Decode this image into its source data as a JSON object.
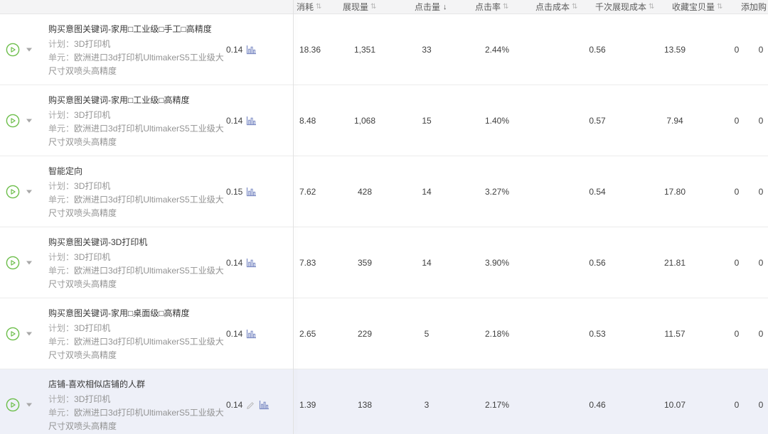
{
  "header": {
    "columns": [
      {
        "label": "消耗",
        "sort": "inactive"
      },
      {
        "label": "展现量",
        "sort": "inactive"
      },
      {
        "label": "点击量",
        "sort": "desc"
      },
      {
        "label": "点击率",
        "sort": "inactive"
      },
      {
        "label": "点击成本",
        "sort": "inactive"
      },
      {
        "label": "千次展现成本",
        "sort": "inactive"
      },
      {
        "label": "收藏宝贝量",
        "sort": "inactive"
      },
      {
        "label": "添加购",
        "sort": "none"
      }
    ],
    "sort_icon_inactive": "⇅",
    "sort_icon_desc": "↓"
  },
  "labels": {
    "plan": "计划：",
    "unit": "单元："
  },
  "rows": [
    {
      "name": "购买意图关键词-家用□工业级□手工□高精度",
      "plan": "3D打印机",
      "unit": "欧洲进口3d打印机UltimakerS5工业级大尺寸双喷头高精度",
      "bid": "0.14",
      "metrics": [
        "18.36",
        "1,351",
        "33",
        "2.44%",
        "0.56",
        "13.59",
        "0",
        "0"
      ],
      "highlighted": false,
      "editable": false
    },
    {
      "name": "购买意图关键词-家用□工业级□高精度",
      "plan": "3D打印机",
      "unit": "欧洲进口3d打印机UltimakerS5工业级大尺寸双喷头高精度",
      "bid": "0.14",
      "metrics": [
        "8.48",
        "1,068",
        "15",
        "1.40%",
        "0.57",
        "7.94",
        "0",
        "0"
      ],
      "highlighted": false,
      "editable": false
    },
    {
      "name": "智能定向",
      "plan": "3D打印机",
      "unit": "欧洲进口3d打印机UltimakerS5工业级大尺寸双喷头高精度",
      "bid": "0.15",
      "metrics": [
        "7.62",
        "428",
        "14",
        "3.27%",
        "0.54",
        "17.80",
        "0",
        "0"
      ],
      "highlighted": false,
      "editable": false
    },
    {
      "name": "购买意图关键词-3D打印机",
      "plan": "3D打印机",
      "unit": "欧洲进口3d打印机UltimakerS5工业级大尺寸双喷头高精度",
      "bid": "0.14",
      "metrics": [
        "7.83",
        "359",
        "14",
        "3.90%",
        "0.56",
        "21.81",
        "0",
        "0"
      ],
      "highlighted": false,
      "editable": false
    },
    {
      "name": "购买意图关键词-家用□桌面级□高精度",
      "plan": "3D打印机",
      "unit": "欧洲进口3d打印机UltimakerS5工业级大尺寸双喷头高精度",
      "bid": "0.14",
      "metrics": [
        "2.65",
        "229",
        "5",
        "2.18%",
        "0.53",
        "11.57",
        "0",
        "0"
      ],
      "highlighted": false,
      "editable": false
    },
    {
      "name": "店铺-喜欢相似店铺的人群",
      "plan": "3D打印机",
      "unit": "欧洲进口3d打印机UltimakerS5工业级大尺寸双喷头高精度",
      "bid": "0.14",
      "metrics": [
        "1.39",
        "138",
        "3",
        "2.17%",
        "0.46",
        "10.07",
        "0",
        "0"
      ],
      "highlighted": true,
      "editable": true
    }
  ],
  "colors": {
    "accent_green": "#6cbe4a",
    "chart_icon_blue": "#7c8bc4",
    "pencil_gray": "#b8b8b8",
    "header_bg": "#f4f4f5",
    "highlight_row_bg": "#eef0f8",
    "divider": "#e1e1e1"
  }
}
